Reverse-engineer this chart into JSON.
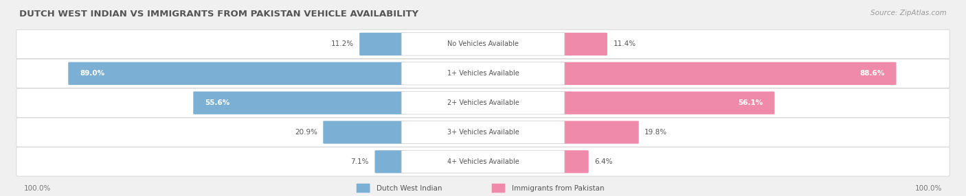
{
  "title": "DUTCH WEST INDIAN VS IMMIGRANTS FROM PAKISTAN VEHICLE AVAILABILITY",
  "source": "Source: ZipAtlas.com",
  "categories": [
    "No Vehicles Available",
    "1+ Vehicles Available",
    "2+ Vehicles Available",
    "3+ Vehicles Available",
    "4+ Vehicles Available"
  ],
  "left_values": [
    11.2,
    89.0,
    55.6,
    20.9,
    7.1
  ],
  "right_values": [
    11.4,
    88.6,
    56.1,
    19.8,
    6.4
  ],
  "left_color": "#7bafd4",
  "right_color": "#f08aaa",
  "left_label": "Dutch West Indian",
  "right_label": "Immigrants from Pakistan",
  "title_color": "#555555",
  "max_value": 100.0,
  "figsize": [
    14.06,
    2.86
  ],
  "dpi": 100
}
